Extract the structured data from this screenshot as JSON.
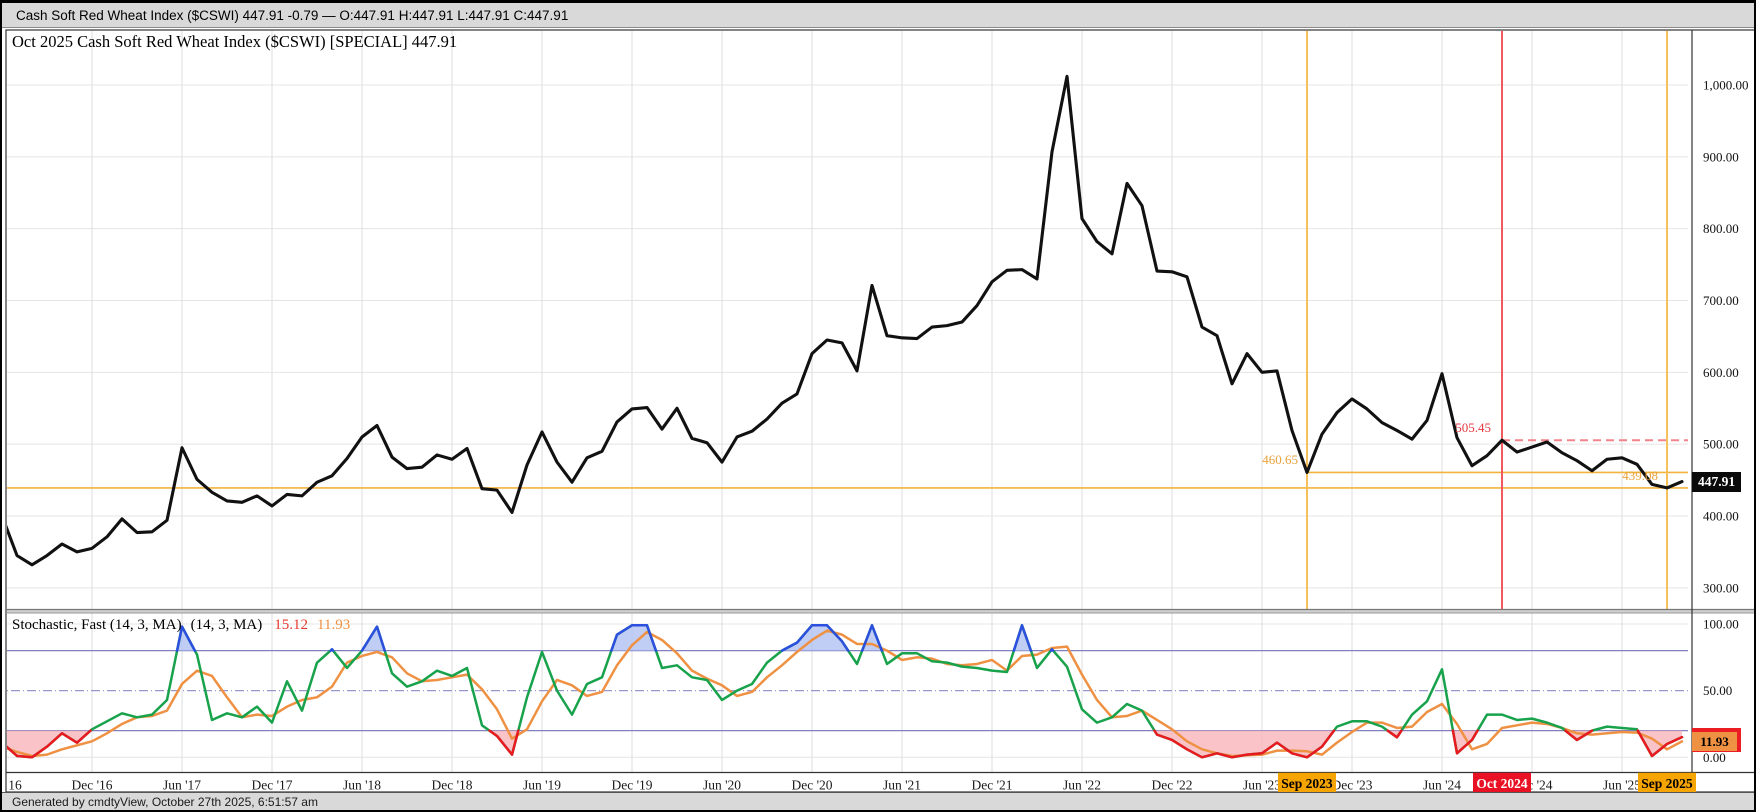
{
  "title_bar": {
    "text": "Cash Soft Red Wheat Index ($CSWI) 447.91 -0.79 — O:447.91 H:447.91 L:447.91 C:447.91"
  },
  "status_bar": {
    "text": "Generated by cmdtyView, October 27th 2025, 6:51:57 am"
  },
  "main_chart": {
    "title": "Oct 2025 Cash Soft Red Wheat Index ($CSWI) [SPECIAL] 447.91",
    "last_price_label": "447.91",
    "y_ticks": [
      {
        "v": 1000,
        "label": "1,000.00"
      },
      {
        "v": 900,
        "label": "900.00"
      },
      {
        "v": 800,
        "label": "800.00"
      },
      {
        "v": 700,
        "label": "700.00"
      },
      {
        "v": 600,
        "label": "600.00"
      },
      {
        "v": 500,
        "label": "500.00"
      },
      {
        "v": 400,
        "label": "400.00"
      },
      {
        "v": 300,
        "label": "300.00"
      }
    ]
  },
  "indicator": {
    "name": "Stochastic, Fast (14, 3, MA)",
    "params": "(14, 3, MA)",
    "k_value": "15.12",
    "d_value": "11.93",
    "thresholds": {
      "overbought": 80,
      "mid": 50,
      "oversold": 20
    },
    "y_ticks": [
      {
        "v": 100,
        "label": "100.00"
      },
      {
        "v": 50,
        "label": "50.00"
      },
      {
        "v": 0,
        "label": "0.00"
      }
    ]
  },
  "x_axis": {
    "ticks": [
      {
        "m": 0,
        "label": "16"
      },
      {
        "m": 6,
        "label": "Dec '16"
      },
      {
        "m": 12,
        "label": "Jun '17"
      },
      {
        "m": 18,
        "label": "Dec '17"
      },
      {
        "m": 24,
        "label": "Jun '18"
      },
      {
        "m": 30,
        "label": "Dec '18"
      },
      {
        "m": 36,
        "label": "Jun '19"
      },
      {
        "m": 42,
        "label": "Dec '19"
      },
      {
        "m": 48,
        "label": "Jun '20"
      },
      {
        "m": 54,
        "label": "Dec '20"
      },
      {
        "m": 60,
        "label": "Jun '21"
      },
      {
        "m": 66,
        "label": "Dec '21"
      },
      {
        "m": 72,
        "label": "Jun '22"
      },
      {
        "m": 78,
        "label": "Dec '22"
      },
      {
        "m": 84,
        "label": "Jun '23"
      },
      {
        "m": 90,
        "label": "Dec '23"
      },
      {
        "m": 96,
        "label": "Jun '24"
      },
      {
        "m": 102,
        "label": "Dec '24"
      },
      {
        "m": 108,
        "label": "Jun '25"
      }
    ],
    "events": [
      {
        "m": 87,
        "label": "Sep 2023",
        "type": "orange"
      },
      {
        "m": 100,
        "label": "Oct 2024",
        "type": "red"
      },
      {
        "m": 111,
        "label": "Sep 2025",
        "type": "orange"
      }
    ]
  },
  "annotations": {
    "ref_2024": {
      "value": 505.45,
      "label": "505.45",
      "start_m": 100,
      "style": "dashed-red"
    },
    "low_2023": {
      "value": 460.65,
      "label": "460.65",
      "start_m": 87,
      "style": "orange"
    },
    "low_2025": {
      "value": 439.08,
      "label": "439.08",
      "start_m": 0,
      "style": "orange"
    }
  },
  "colors": {
    "price_line": "#111111",
    "grid": "#e4e4e4",
    "grid_v": "#dedede",
    "frame": "#333333",
    "orange_line": "#f3b33c",
    "orange_vline": "#f8c058",
    "red_vline": "#f25a60",
    "red_dashed": "#f4848c",
    "ann_orange_text": "#e9a23b",
    "ann_red_text": "#e5383f",
    "badge_orange": "#f5a402",
    "badge_red": "#e81224",
    "stoch_k_green": "#17a24b",
    "stoch_k_blue": "#2c4fdf",
    "stoch_k_red": "#ea1920",
    "stoch_d_orange": "#ef9143",
    "fill_blue": "#b0c0f2",
    "fill_pink": "#f8b4ba",
    "threshold_line": "#8080c0",
    "mid_line": "#9898cc"
  },
  "chart_data": [
    {
      "type": "line",
      "title": "Oct 2025 Cash Soft Red Wheat Index ($CSWI) [SPECIAL]",
      "xlabel": "",
      "ylabel": "",
      "x_start": "2016-06",
      "x_end": "2025-10",
      "frequency": "monthly",
      "ylim": [
        268,
        1075
      ],
      "y_gridlines": [
        300,
        400,
        500,
        600,
        700,
        800,
        900,
        1000
      ],
      "grid": true,
      "series": [
        {
          "name": "$CSWI monthly close",
          "color": "#111111",
          "values": [
            400,
            345,
            332,
            345,
            361,
            350,
            355,
            371,
            396,
            377,
            378,
            394,
            495,
            451,
            433,
            421,
            419,
            428,
            414,
            430,
            428,
            447,
            456,
            480,
            510,
            526,
            482,
            466,
            468,
            485,
            479,
            494,
            438,
            436,
            405,
            471,
            517,
            475,
            447,
            481,
            490,
            531,
            549,
            551,
            521,
            550,
            508,
            502,
            475,
            510,
            518,
            535,
            557,
            570,
            626,
            645,
            641,
            602,
            721,
            651,
            648,
            647,
            663,
            665,
            670,
            693,
            726,
            742,
            743,
            730,
            907,
            1012,
            814,
            782,
            765,
            863,
            832,
            741,
            740,
            733,
            663,
            651,
            584,
            626,
            600,
            602,
            519,
            460.65,
            514,
            544,
            563,
            549,
            530,
            519,
            507,
            533,
            598,
            509,
            470,
            484,
            505.45,
            489,
            496,
            503,
            488,
            477,
            463,
            479,
            481,
            472,
            444,
            439.08,
            447.91
          ]
        }
      ],
      "annotations": {
        "h_lines": [
          {
            "value": 505.45,
            "from": "2024-10",
            "style": "dashed red"
          },
          {
            "value": 460.65,
            "from": "2023-09",
            "style": "solid orange"
          },
          {
            "value": 439.08,
            "from": "2016-06",
            "style": "solid orange"
          }
        ],
        "v_lines": [
          {
            "date": "2023-09",
            "color": "orange"
          },
          {
            "date": "2024-10",
            "color": "red"
          },
          {
            "date": "2025-09",
            "color": "orange"
          }
        ],
        "last_price": 447.91
      }
    },
    {
      "type": "line",
      "title": "Stochastic, Fast (14, 3, MA) (14, 3, MA)",
      "x_start": "2016-06",
      "x_end": "2025-10",
      "frequency": "monthly",
      "ylim": [
        -12,
        108
      ],
      "y_gridlines": [
        0,
        100
      ],
      "thresholds": [
        20,
        50,
        80
      ],
      "legend_position": "top-left",
      "series": [
        {
          "name": "%K (14,3)",
          "color": "green; blue above 80 with blue fill; red below 20 with pink fill",
          "last_value": 15.12,
          "values": [
            11,
            1,
            0,
            8,
            18,
            11,
            21,
            27,
            33,
            30,
            32,
            43,
            98,
            77,
            28,
            33,
            30,
            38,
            26,
            57,
            35,
            71,
            81,
            67,
            80,
            98,
            63,
            53,
            57,
            65,
            61,
            67,
            24,
            16,
            2,
            45,
            79,
            50,
            32,
            55,
            60,
            92,
            99,
            99,
            67,
            69,
            60,
            58,
            43,
            50,
            55,
            71,
            80,
            86,
            99,
            99,
            87,
            70,
            99,
            70,
            78,
            78,
            72,
            71,
            68,
            67,
            65,
            64,
            99,
            67,
            81,
            68,
            36,
            26,
            30,
            40,
            35,
            17,
            13,
            6,
            0,
            3,
            0,
            2,
            3,
            11,
            3,
            0,
            8,
            23,
            27,
            27,
            23,
            15,
            32,
            42,
            66,
            3,
            13,
            32,
            32,
            28,
            29,
            26,
            22,
            13,
            20,
            23,
            22,
            21,
            1,
            10,
            15.12
          ]
        },
        {
          "name": "%D (3 MA)",
          "color": "#ef9143",
          "last_value": 11.93,
          "values": [
            8,
            4,
            1,
            2,
            6,
            9,
            12,
            18,
            25,
            30,
            31,
            35,
            55,
            65,
            61,
            45,
            30,
            32,
            31,
            38,
            43,
            45,
            53,
            71,
            76,
            79,
            75,
            63,
            57,
            58,
            60,
            62,
            51,
            36,
            14,
            21,
            42,
            58,
            54,
            46,
            49,
            69,
            84,
            94,
            88,
            78,
            65,
            59,
            54,
            46,
            49,
            60,
            69,
            79,
            88,
            95,
            92,
            85,
            85,
            80,
            73,
            75,
            74,
            70,
            69,
            70,
            73,
            65,
            76,
            77,
            82,
            83,
            62,
            43,
            30,
            31,
            35,
            28,
            21,
            12,
            6,
            3,
            1,
            1.5,
            2,
            5,
            5,
            4.5,
            2,
            11,
            19,
            26,
            26,
            22,
            23,
            34,
            40,
            25,
            6,
            10,
            22,
            24,
            26,
            25,
            22,
            18,
            17,
            18,
            19,
            18.5,
            14,
            6,
            11.93
          ]
        }
      ]
    }
  ]
}
